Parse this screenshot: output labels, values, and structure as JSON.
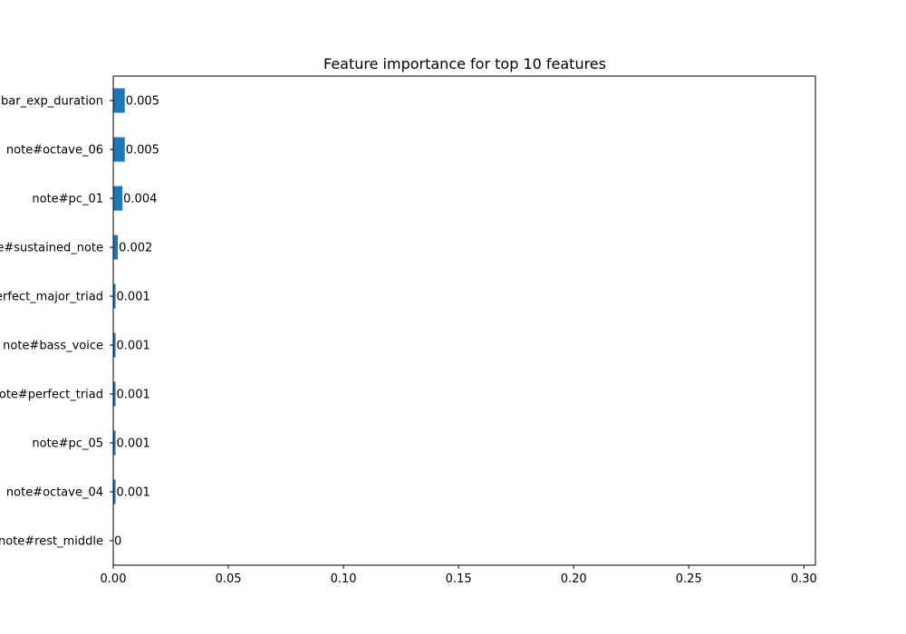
{
  "chart_data": {
    "type": "bar",
    "orientation": "horizontal",
    "title": "Feature importance for top 10 features",
    "xlabel": "",
    "ylabel": "",
    "categories": [
      "bar_exp_duration",
      "note#octave_06",
      "note#pc_01",
      "note#sustained_note",
      "note#perfect_major_triad",
      "note#bass_voice",
      "note#perfect_triad",
      "note#pc_05",
      "note#octave_04",
      "note#rest_middle"
    ],
    "values": [
      0.005,
      0.005,
      0.004,
      0.002,
      0.001,
      0.001,
      0.001,
      0.001,
      0.001,
      0
    ],
    "value_labels": [
      "0.005",
      "0.005",
      "0.004",
      "0.002",
      "0.001",
      "0.001",
      "0.001",
      "0.001",
      "0.001",
      "0"
    ],
    "xlim": [
      0,
      0.305
    ],
    "xticks": [
      0.0,
      0.05,
      0.1,
      0.15,
      0.2,
      0.25,
      0.3
    ],
    "xtick_labels": [
      "0.00",
      "0.05",
      "0.10",
      "0.15",
      "0.20",
      "0.25",
      "0.30"
    ],
    "bar_color": "#1f77b4",
    "grid": false,
    "legend": "none"
  }
}
